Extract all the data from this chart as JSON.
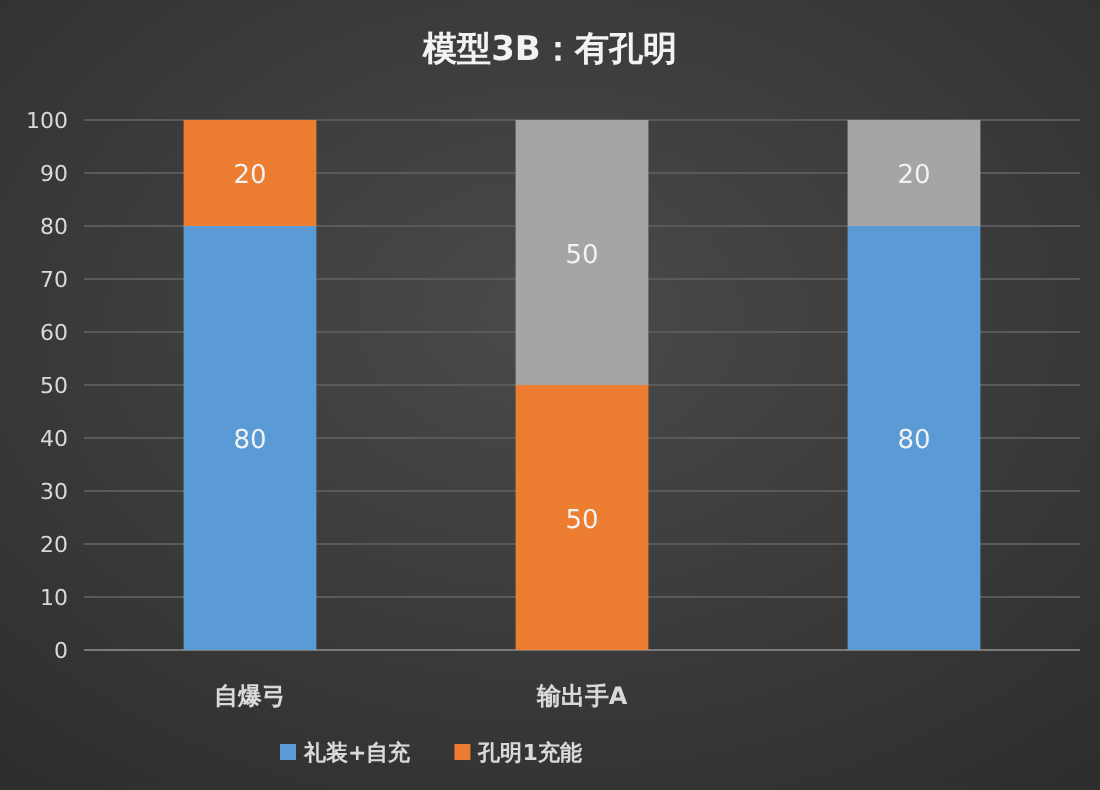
{
  "chart_data": {
    "type": "bar",
    "title": "模型3B：有孔明",
    "stacked": true,
    "data_labels": true,
    "grid": "y",
    "legend": "bottom",
    "categories": [
      "自爆弓",
      "输出手A",
      null
    ],
    "ylim": [
      0,
      100
    ],
    "yticks": [
      0,
      10,
      20,
      30,
      40,
      50,
      60,
      70,
      80,
      90,
      100
    ],
    "series": [
      {
        "name": "礼装+自充",
        "color": "#5b9bd5",
        "values": [
          80,
          null,
          80
        ]
      },
      {
        "name": "孔明1充能",
        "color": "#ed7d31",
        "values": [
          20,
          50,
          null
        ]
      },
      {
        "color": "#a5a5a5",
        "values": [
          null,
          50,
          20
        ]
      }
    ]
  }
}
